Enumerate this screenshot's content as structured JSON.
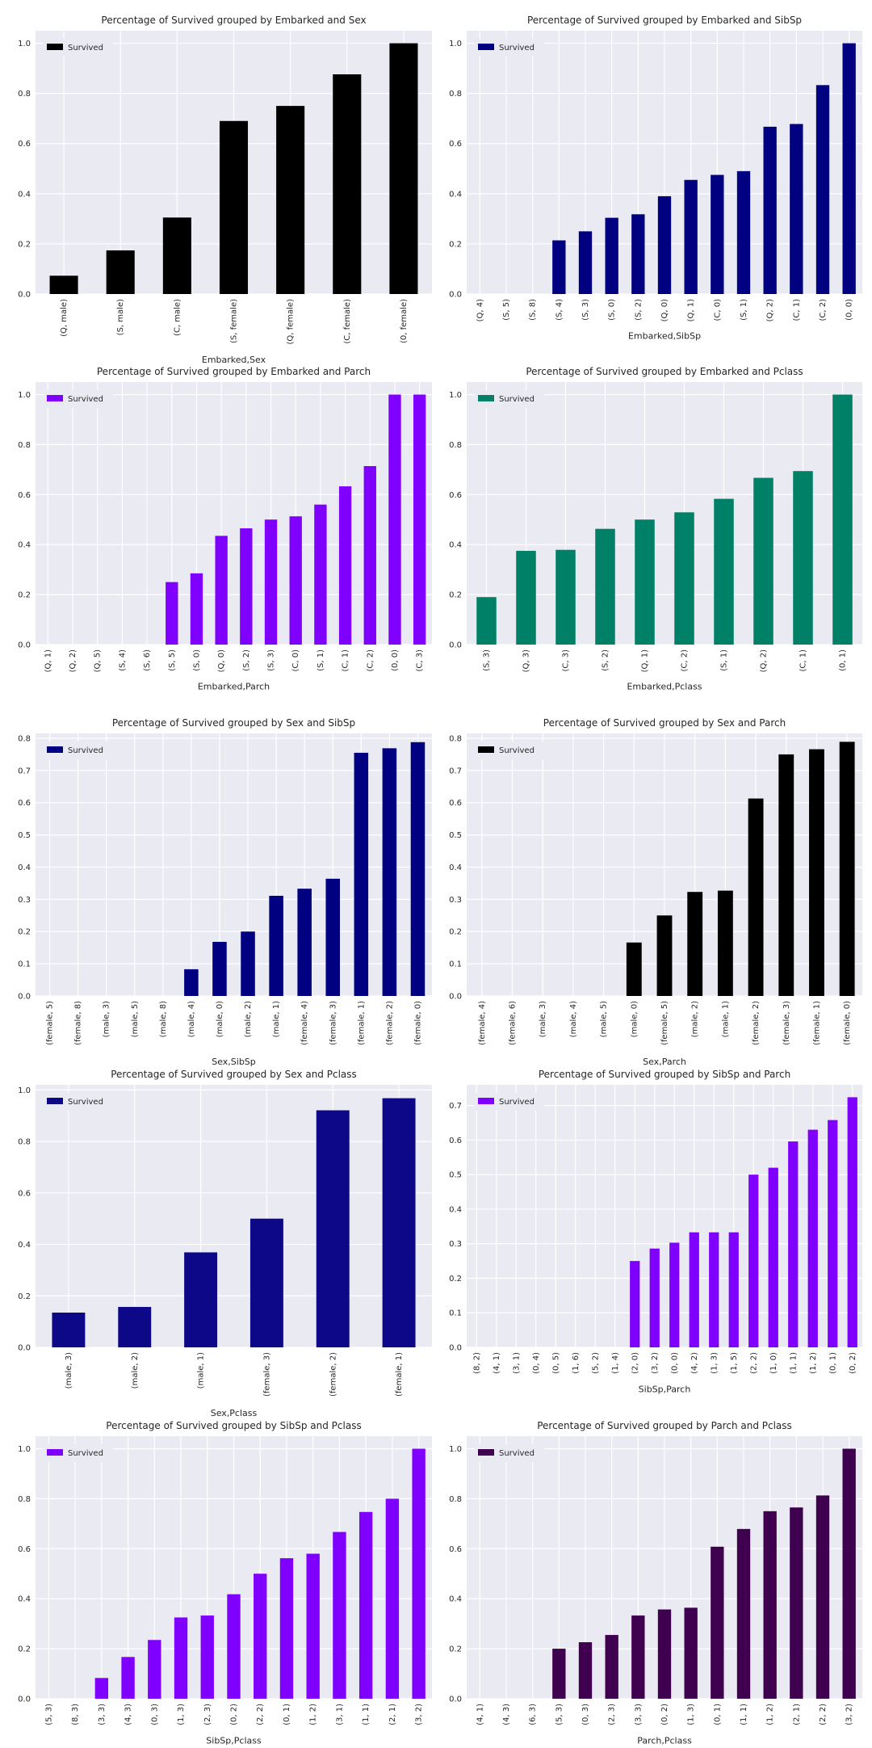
{
  "legend_label": "Survived",
  "charts": [
    {
      "type": "bar",
      "title": "Percentage of Survived grouped by Embarked and Sex",
      "xlabel": "Embarked,Sex",
      "color": "#000000",
      "ylim": [
        0,
        1.05
      ],
      "yticks": [
        "0.0",
        "0.2",
        "0.4",
        "0.6",
        "0.8",
        "1.0"
      ],
      "categories": [
        "(Q, male)",
        "(S, male)",
        "(C, male)",
        "(S, female)",
        "(Q, female)",
        "(C, female)",
        "(0, female)"
      ],
      "values": [
        0.073,
        0.174,
        0.305,
        0.69,
        0.75,
        0.876,
        1.0
      ]
    },
    {
      "type": "bar",
      "title": "Percentage of Survived grouped by Embarked and SibSp",
      "xlabel": "Embarked,SibSp",
      "color": "#000080",
      "ylim": [
        0,
        1.05
      ],
      "yticks": [
        "0.0",
        "0.2",
        "0.4",
        "0.6",
        "0.8",
        "1.0"
      ],
      "categories": [
        "(Q, 4)",
        "(S, 5)",
        "(S, 8)",
        "(S, 4)",
        "(S, 3)",
        "(S, 0)",
        "(S, 2)",
        "(Q, 0)",
        "(Q, 1)",
        "(C, 0)",
        "(S, 1)",
        "(Q, 2)",
        "(C, 1)",
        "(C, 2)",
        "(0, 0)"
      ],
      "values": [
        0,
        0,
        0,
        0.214,
        0.25,
        0.304,
        0.318,
        0.39,
        0.455,
        0.475,
        0.49,
        0.667,
        0.678,
        0.833,
        1.0
      ]
    },
    {
      "type": "bar",
      "title": "Percentage of Survived grouped by Embarked and Parch",
      "xlabel": "Embarked,Parch",
      "color": "#8000ff",
      "ylim": [
        0,
        1.05
      ],
      "yticks": [
        "0.0",
        "0.2",
        "0.4",
        "0.6",
        "0.8",
        "1.0"
      ],
      "categories": [
        "(Q, 1)",
        "(Q, 2)",
        "(Q, 5)",
        "(S, 4)",
        "(S, 6)",
        "(S, 5)",
        "(S, 0)",
        "(Q, 0)",
        "(S, 2)",
        "(S, 3)",
        "(C, 0)",
        "(S, 1)",
        "(C, 1)",
        "(C, 2)",
        "(0, 0)",
        "(C, 3)"
      ],
      "values": [
        0,
        0,
        0,
        0,
        0,
        0.25,
        0.285,
        0.435,
        0.465,
        0.5,
        0.513,
        0.56,
        0.633,
        0.714,
        1.0,
        1.0
      ]
    },
    {
      "type": "bar",
      "title": "Percentage of Survived grouped by Embarked and Pclass",
      "xlabel": "Embarked,Pclass",
      "color": "#008066",
      "ylim": [
        0,
        1.05
      ],
      "yticks": [
        "0.0",
        "0.2",
        "0.4",
        "0.6",
        "0.8",
        "1.0"
      ],
      "categories": [
        "(S, 3)",
        "(Q, 3)",
        "(C, 3)",
        "(S, 2)",
        "(Q, 1)",
        "(C, 2)",
        "(S, 1)",
        "(Q, 2)",
        "(C, 1)",
        "(0, 1)"
      ],
      "values": [
        0.19,
        0.375,
        0.379,
        0.463,
        0.5,
        0.529,
        0.583,
        0.667,
        0.694,
        1.0
      ]
    },
    {
      "type": "bar",
      "title": "Percentage of Survived grouped by Sex and SibSp",
      "xlabel": "Sex,SibSp",
      "color": "#000080",
      "ylim": [
        0,
        0.815
      ],
      "yticks": [
        "0.0",
        "0.1",
        "0.2",
        "0.3",
        "0.4",
        "0.5",
        "0.6",
        "0.7",
        "0.8"
      ],
      "categories": [
        "(female, 5)",
        "(female, 8)",
        "(male, 3)",
        "(male, 5)",
        "(male, 8)",
        "(male, 4)",
        "(male, 0)",
        "(male, 2)",
        "(male, 1)",
        "(female, 4)",
        "(female, 3)",
        "(female, 1)",
        "(female, 2)",
        "(female, 0)"
      ],
      "values": [
        0,
        0,
        0,
        0,
        0,
        0.083,
        0.168,
        0.2,
        0.311,
        0.333,
        0.364,
        0.755,
        0.769,
        0.788
      ]
    },
    {
      "type": "bar",
      "title": "Percentage of Survived grouped by Sex and Parch",
      "xlabel": "Sex,Parch",
      "color": "#000000",
      "ylim": [
        0,
        0.815
      ],
      "yticks": [
        "0.0",
        "0.1",
        "0.2",
        "0.3",
        "0.4",
        "0.5",
        "0.6",
        "0.7",
        "0.8"
      ],
      "categories": [
        "(female, 4)",
        "(female, 6)",
        "(male, 3)",
        "(male, 4)",
        "(male, 5)",
        "(male, 0)",
        "(female, 5)",
        "(male, 2)",
        "(male, 1)",
        "(female, 2)",
        "(female, 3)",
        "(female, 1)",
        "(female, 0)"
      ],
      "values": [
        0,
        0,
        0,
        0,
        0,
        0.166,
        0.25,
        0.323,
        0.327,
        0.613,
        0.75,
        0.766,
        0.789
      ]
    },
    {
      "type": "bar",
      "title": "Percentage of Survived grouped by Sex and Pclass",
      "xlabel": "Sex,Pclass",
      "color": "#0d0887",
      "ylim": [
        0,
        1.02
      ],
      "yticks": [
        "0.0",
        "0.2",
        "0.4",
        "0.6",
        "0.8",
        "1.0"
      ],
      "categories": [
        "(male, 3)",
        "(male, 2)",
        "(male, 1)",
        "(female, 3)",
        "(female, 2)",
        "(female, 1)"
      ],
      "values": [
        0.135,
        0.157,
        0.369,
        0.5,
        0.921,
        0.968
      ]
    },
    {
      "type": "bar",
      "title": "Percentage of Survived grouped by SibSp and Parch",
      "xlabel": "SibSp,Parch",
      "color": "#8000ff",
      "ylim": [
        0,
        0.76
      ],
      "yticks": [
        "0.0",
        "0.1",
        "0.2",
        "0.3",
        "0.4",
        "0.5",
        "0.6",
        "0.7"
      ],
      "categories": [
        "(8, 2)",
        "(4, 1)",
        "(3, 1)",
        "(0, 4)",
        "(0, 5)",
        "(1, 6)",
        "(5, 2)",
        "(1, 4)",
        "(2, 0)",
        "(3, 2)",
        "(0, 0)",
        "(4, 2)",
        "(1, 3)",
        "(1, 5)",
        "(2, 2)",
        "(1, 0)",
        "(1, 1)",
        "(1, 2)",
        "(0, 1)",
        "(0, 2)"
      ],
      "values": [
        0,
        0,
        0,
        0,
        0,
        0,
        0,
        0,
        0.25,
        0.286,
        0.303,
        0.333,
        0.333,
        0.333,
        0.5,
        0.52,
        0.596,
        0.63,
        0.658,
        0.724
      ]
    },
    {
      "type": "bar",
      "title": "Percentage of Survived grouped by SibSp and Pclass",
      "xlabel": "SibSp,Pclass",
      "color": "#8000ff",
      "ylim": [
        0,
        1.05
      ],
      "yticks": [
        "0.0",
        "0.2",
        "0.4",
        "0.6",
        "0.8",
        "1.0"
      ],
      "categories": [
        "(5, 3)",
        "(8, 3)",
        "(3, 3)",
        "(4, 3)",
        "(0, 3)",
        "(1, 3)",
        "(2, 3)",
        "(0, 2)",
        "(2, 2)",
        "(0, 1)",
        "(1, 2)",
        "(3, 1)",
        "(1, 1)",
        "(2, 1)",
        "(3, 2)"
      ],
      "values": [
        0,
        0,
        0.083,
        0.167,
        0.235,
        0.325,
        0.333,
        0.418,
        0.5,
        0.562,
        0.58,
        0.667,
        0.747,
        0.8,
        1.0
      ]
    },
    {
      "type": "bar",
      "title": "Percentage of Survived grouped by Parch and Pclass",
      "xlabel": "Parch,Pclass",
      "color": "#3f004f",
      "ylim": [
        0,
        1.05
      ],
      "yticks": [
        "0.0",
        "0.2",
        "0.4",
        "0.6",
        "0.8",
        "1.0"
      ],
      "categories": [
        "(4, 1)",
        "(4, 3)",
        "(6, 3)",
        "(5, 3)",
        "(0, 3)",
        "(2, 3)",
        "(3, 3)",
        "(0, 2)",
        "(1, 3)",
        "(0, 1)",
        "(1, 1)",
        "(1, 2)",
        "(2, 1)",
        "(2, 2)",
        "(3, 2)"
      ],
      "values": [
        0,
        0,
        0,
        0.2,
        0.226,
        0.255,
        0.333,
        0.357,
        0.364,
        0.608,
        0.679,
        0.75,
        0.765,
        0.813,
        1.0
      ]
    }
  ],
  "chart_data": [
    {
      "type": "bar",
      "title": "Percentage of Survived grouped by Embarked and Sex",
      "xlabel": "Embarked,Sex",
      "ylabel": "",
      "ylim": [
        0,
        1.05
      ],
      "legend": "top-left",
      "grid": true,
      "categories": [
        "(Q, male)",
        "(S, male)",
        "(C, male)",
        "(S, female)",
        "(Q, female)",
        "(C, female)",
        "(0, female)"
      ],
      "series": [
        {
          "name": "Survived",
          "values": [
            0.073,
            0.174,
            0.305,
            0.69,
            0.75,
            0.876,
            1.0
          ]
        }
      ]
    },
    {
      "type": "bar",
      "title": "Percentage of Survived grouped by Embarked and SibSp",
      "xlabel": "Embarked,SibSp",
      "ylabel": "",
      "ylim": [
        0,
        1.05
      ],
      "legend": "top-left",
      "grid": true,
      "categories": [
        "(Q, 4)",
        "(S, 5)",
        "(S, 8)",
        "(S, 4)",
        "(S, 3)",
        "(S, 0)",
        "(S, 2)",
        "(Q, 0)",
        "(Q, 1)",
        "(C, 0)",
        "(S, 1)",
        "(Q, 2)",
        "(C, 1)",
        "(C, 2)",
        "(0, 0)"
      ],
      "series": [
        {
          "name": "Survived",
          "values": [
            0,
            0,
            0,
            0.214,
            0.25,
            0.304,
            0.318,
            0.39,
            0.455,
            0.475,
            0.49,
            0.667,
            0.678,
            0.833,
            1.0
          ]
        }
      ]
    },
    {
      "type": "bar",
      "title": "Percentage of Survived grouped by Embarked and Parch",
      "xlabel": "Embarked,Parch",
      "ylabel": "",
      "ylim": [
        0,
        1.05
      ],
      "legend": "top-left",
      "grid": true,
      "categories": [
        "(Q, 1)",
        "(Q, 2)",
        "(Q, 5)",
        "(S, 4)",
        "(S, 6)",
        "(S, 5)",
        "(S, 0)",
        "(Q, 0)",
        "(S, 2)",
        "(S, 3)",
        "(C, 0)",
        "(S, 1)",
        "(C, 1)",
        "(C, 2)",
        "(0, 0)",
        "(C, 3)"
      ],
      "series": [
        {
          "name": "Survived",
          "values": [
            0,
            0,
            0,
            0,
            0,
            0.25,
            0.285,
            0.435,
            0.465,
            0.5,
            0.513,
            0.56,
            0.633,
            0.714,
            1.0,
            1.0
          ]
        }
      ]
    },
    {
      "type": "bar",
      "title": "Percentage of Survived grouped by Embarked and Pclass",
      "xlabel": "Embarked,Pclass",
      "ylabel": "",
      "ylim": [
        0,
        1.05
      ],
      "legend": "top-left",
      "grid": true,
      "categories": [
        "(S, 3)",
        "(Q, 3)",
        "(C, 3)",
        "(S, 2)",
        "(Q, 1)",
        "(C, 2)",
        "(S, 1)",
        "(Q, 2)",
        "(C, 1)",
        "(0, 1)"
      ],
      "series": [
        {
          "name": "Survived",
          "values": [
            0.19,
            0.375,
            0.379,
            0.463,
            0.5,
            0.529,
            0.583,
            0.667,
            0.694,
            1.0
          ]
        }
      ]
    },
    {
      "type": "bar",
      "title": "Percentage of Survived grouped by Sex and SibSp",
      "xlabel": "Sex,SibSp",
      "ylabel": "",
      "ylim": [
        0,
        0.815
      ],
      "legend": "top-left",
      "grid": true,
      "categories": [
        "(female, 5)",
        "(female, 8)",
        "(male, 3)",
        "(male, 5)",
        "(male, 8)",
        "(male, 4)",
        "(male, 0)",
        "(male, 2)",
        "(male, 1)",
        "(female, 4)",
        "(female, 3)",
        "(female, 1)",
        "(female, 2)",
        "(female, 0)"
      ],
      "series": [
        {
          "name": "Survived",
          "values": [
            0,
            0,
            0,
            0,
            0,
            0.083,
            0.168,
            0.2,
            0.311,
            0.333,
            0.364,
            0.755,
            0.769,
            0.788
          ]
        }
      ]
    },
    {
      "type": "bar",
      "title": "Percentage of Survived grouped by Sex and Parch",
      "xlabel": "Sex,Parch",
      "ylabel": "",
      "ylim": [
        0,
        0.815
      ],
      "legend": "top-left",
      "grid": true,
      "categories": [
        "(female, 4)",
        "(female, 6)",
        "(male, 3)",
        "(male, 4)",
        "(male, 5)",
        "(male, 0)",
        "(female, 5)",
        "(male, 2)",
        "(male, 1)",
        "(female, 2)",
        "(female, 3)",
        "(female, 1)",
        "(female, 0)"
      ],
      "series": [
        {
          "name": "Survived",
          "values": [
            0,
            0,
            0,
            0,
            0,
            0.166,
            0.25,
            0.323,
            0.327,
            0.613,
            0.75,
            0.766,
            0.789
          ]
        }
      ]
    },
    {
      "type": "bar",
      "title": "Percentage of Survived grouped by Sex and Pclass",
      "xlabel": "Sex,Pclass",
      "ylabel": "",
      "ylim": [
        0,
        1.02
      ],
      "legend": "top-left",
      "grid": true,
      "categories": [
        "(male, 3)",
        "(male, 2)",
        "(male, 1)",
        "(female, 3)",
        "(female, 2)",
        "(female, 1)"
      ],
      "series": [
        {
          "name": "Survived",
          "values": [
            0.135,
            0.157,
            0.369,
            0.5,
            0.921,
            0.968
          ]
        }
      ]
    },
    {
      "type": "bar",
      "title": "Percentage of Survived grouped by SibSp and Parch",
      "xlabel": "SibSp,Parch",
      "ylabel": "",
      "ylim": [
        0,
        0.76
      ],
      "legend": "top-left",
      "grid": true,
      "categories": [
        "(8, 2)",
        "(4, 1)",
        "(3, 1)",
        "(0, 4)",
        "(0, 5)",
        "(1, 6)",
        "(5, 2)",
        "(1, 4)",
        "(2, 0)",
        "(3, 2)",
        "(0, 0)",
        "(4, 2)",
        "(1, 3)",
        "(1, 5)",
        "(2, 2)",
        "(1, 0)",
        "(1, 1)",
        "(1, 2)",
        "(0, 1)",
        "(0, 2)"
      ],
      "series": [
        {
          "name": "Survived",
          "values": [
            0,
            0,
            0,
            0,
            0,
            0,
            0,
            0,
            0.25,
            0.286,
            0.303,
            0.333,
            0.333,
            0.333,
            0.5,
            0.52,
            0.596,
            0.63,
            0.658,
            0.724
          ]
        }
      ]
    },
    {
      "type": "bar",
      "title": "Percentage of Survived grouped by SibSp and Pclass",
      "xlabel": "SibSp,Pclass",
      "ylabel": "",
      "ylim": [
        0,
        1.05
      ],
      "legend": "top-left",
      "grid": true,
      "categories": [
        "(5, 3)",
        "(8, 3)",
        "(3, 3)",
        "(4, 3)",
        "(0, 3)",
        "(1, 3)",
        "(2, 3)",
        "(0, 2)",
        "(2, 2)",
        "(0, 1)",
        "(1, 2)",
        "(3, 1)",
        "(1, 1)",
        "(2, 1)",
        "(3, 2)"
      ],
      "series": [
        {
          "name": "Survived",
          "values": [
            0,
            0,
            0.083,
            0.167,
            0.235,
            0.325,
            0.333,
            0.418,
            0.5,
            0.562,
            0.58,
            0.667,
            0.747,
            0.8,
            1.0
          ]
        }
      ]
    },
    {
      "type": "bar",
      "title": "Percentage of Survived grouped by Parch and Pclass",
      "xlabel": "Parch,Pclass",
      "ylabel": "",
      "ylim": [
        0,
        1.05
      ],
      "legend": "top-left",
      "grid": true,
      "categories": [
        "(4, 1)",
        "(4, 3)",
        "(6, 3)",
        "(5, 3)",
        "(0, 3)",
        "(2, 3)",
        "(3, 3)",
        "(0, 2)",
        "(1, 3)",
        "(0, 1)",
        "(1, 1)",
        "(1, 2)",
        "(2, 1)",
        "(2, 2)",
        "(3, 2)"
      ],
      "series": [
        {
          "name": "Survived",
          "values": [
            0,
            0,
            0,
            0.2,
            0.226,
            0.255,
            0.333,
            0.357,
            0.364,
            0.608,
            0.679,
            0.75,
            0.765,
            0.813,
            1.0
          ]
        }
      ]
    }
  ]
}
